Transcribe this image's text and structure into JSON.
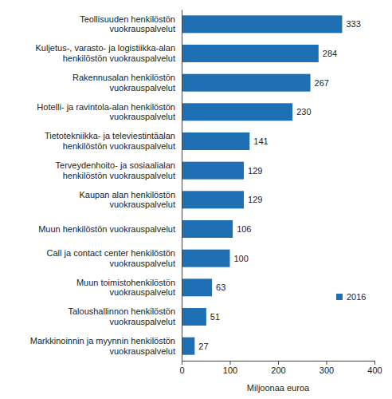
{
  "chart_data": {
    "type": "bar",
    "orientation": "horizontal",
    "categories": [
      "Teollisuuden henkilöstön vuokrauspalvelut",
      "Kuljetus-, varasto- ja logistiikka-alan henkilöstön vuokrauspalvelut",
      "Rakennusalan henkilöstön vuokrauspalvelut",
      "Hotelli- ja ravintola-alan henkilöstön vuokrauspalvelut",
      "Tietotekniikka- ja televiestintäalan henkilöstön vuokrauspalvelut",
      "Terveydenhoito- ja sosiaalialan henkilöstön vuokrauspalvelut",
      "Kaupan alan henkilöstön vuokrauspalvelut",
      "Muun henkilöstön vuokrauspalvelut",
      "Call ja contact center henkilöstön vuokrauspalvelut",
      "Muun toimistohenkilöstön vuokrauspalvelut",
      "Taloushallinnon henkilöstön vuokrauspalvelut",
      "Markkinoinnin ja myynnin henkilöstön vuokrauspalvelut"
    ],
    "series": [
      {
        "name": "2016",
        "color": "#1f6fb5",
        "values": [
          333,
          284,
          267,
          230,
          141,
          129,
          129,
          106,
          100,
          63,
          51,
          27
        ]
      }
    ],
    "x_label": "Miljoonaa euroa",
    "xlim": [
      0,
      400
    ],
    "xticks": [
      0,
      100,
      200,
      300,
      400
    ],
    "data_labels": true,
    "legend": "lower right",
    "grid": false
  }
}
